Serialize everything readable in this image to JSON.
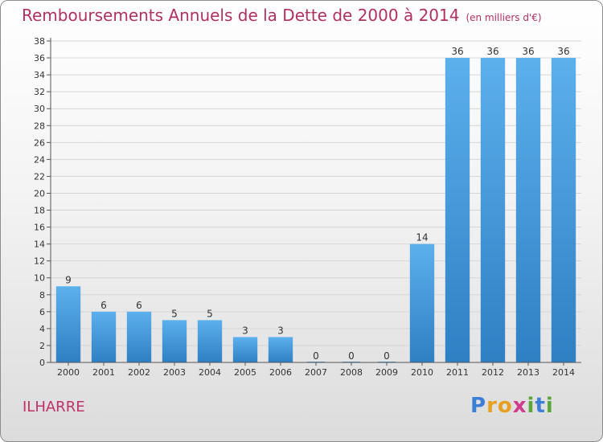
{
  "title": "Remboursements Annuels de la Dette de 2000 à 2014",
  "unit_note": "(en milliers d'€)",
  "commune": "ILHARRE",
  "logo": {
    "letters": [
      "P",
      "r",
      "o",
      "x",
      "i",
      "t",
      "i"
    ],
    "colors": [
      "#3d7fd6",
      "#e8a020",
      "#e8a020",
      "#d23a8f",
      "#5aa63a",
      "#3d7fd6",
      "#5aa63a"
    ]
  },
  "colors": {
    "bar": "#4a9ee0",
    "title": "#b03060",
    "grid": "#d6d6d6"
  },
  "chart_data": {
    "type": "bar",
    "title": "Remboursements Annuels de la Dette de 2000 à 2014",
    "categories": [
      "2000",
      "2001",
      "2002",
      "2003",
      "2004",
      "2005",
      "2006",
      "2007",
      "2008",
      "2009",
      "2010",
      "2011",
      "2012",
      "2013",
      "2014"
    ],
    "values": [
      9,
      6,
      6,
      5,
      5,
      3,
      3,
      0,
      0,
      0,
      14,
      36,
      36,
      36,
      36
    ],
    "ylim": [
      0,
      38
    ],
    "yticks": [
      0,
      2,
      4,
      6,
      8,
      10,
      12,
      14,
      16,
      18,
      20,
      22,
      24,
      26,
      28,
      30,
      32,
      34,
      36,
      38
    ],
    "grid": true
  }
}
